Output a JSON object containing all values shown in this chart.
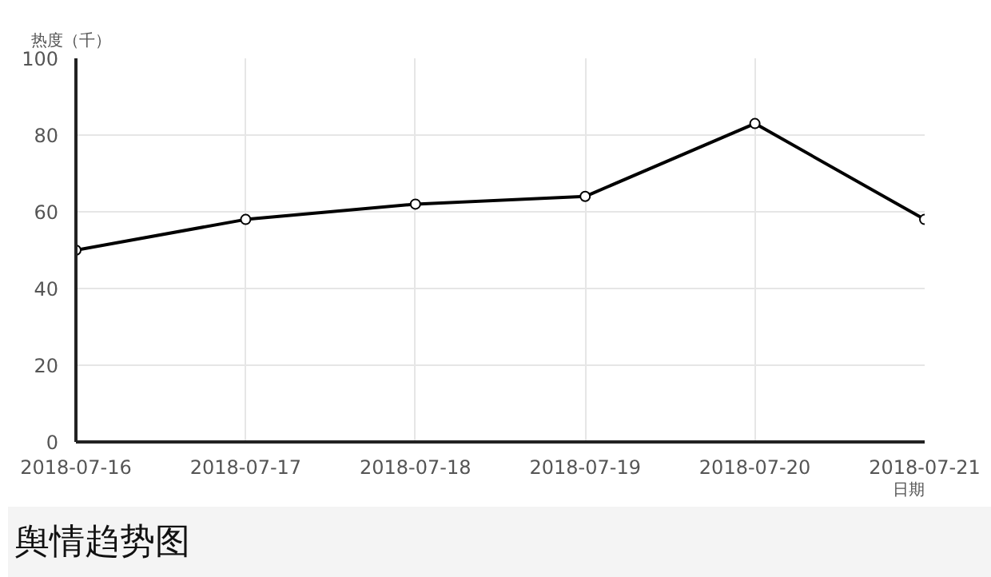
{
  "chart_data": {
    "type": "line",
    "title": "舆情趋势图",
    "xlabel": "日期",
    "ylabel": "热度（千）",
    "categories": [
      "2018-07-16",
      "2018-07-17",
      "2018-07-18",
      "2018-07-19",
      "2018-07-20",
      "2018-07-21"
    ],
    "series": [
      {
        "color": "#000000",
        "values": [
          50,
          58,
          62,
          64,
          83,
          58
        ]
      }
    ],
    "ylim": [
      0,
      100
    ],
    "yticks": [
      0,
      20,
      40,
      60,
      80,
      100
    ],
    "grid": true,
    "marker": "circle",
    "line_style": "solid"
  }
}
